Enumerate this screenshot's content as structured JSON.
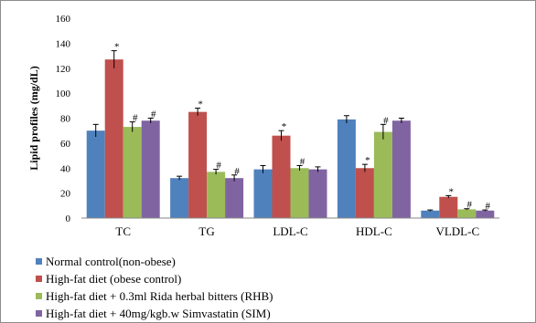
{
  "chart_data": {
    "type": "bar",
    "title": "",
    "xlabel": "",
    "ylabel": "Lipid profiles (mg/dL)",
    "ylim": [
      0,
      160
    ],
    "yticks": [
      "0",
      "20",
      "40",
      "60",
      "80",
      "100",
      "120",
      "140",
      "160"
    ],
    "categories": [
      "TC",
      "TG",
      "LDL-C",
      "HDL-C",
      "VLDL-C"
    ],
    "grid": false,
    "legend_position": "bottom",
    "series": [
      {
        "name": "Normal control(non-obese)",
        "color": "#4f81bd",
        "values": [
          70,
          32,
          39,
          79,
          6
        ],
        "errors": [
          5,
          1.5,
          3,
          3,
          0.5
        ],
        "markers": [
          "",
          "",
          "",
          "",
          ""
        ]
      },
      {
        "name": "High-fat diet (obese control)",
        "color": "#c0504d",
        "values": [
          127,
          85,
          66,
          40,
          17
        ],
        "errors": [
          7,
          3,
          4,
          3,
          1
        ],
        "markers": [
          "*",
          "*",
          "*",
          "*",
          "*"
        ]
      },
      {
        "name": "High-fat diet + 0.3ml Rida herbal bitters (RHB)",
        "color": "#9bbb59",
        "values": [
          73,
          37,
          40,
          69,
          7
        ],
        "errors": [
          4,
          2,
          2,
          6,
          0.5
        ],
        "markers": [
          "#",
          "#",
          "#",
          "#",
          "#"
        ]
      },
      {
        "name": "High-fat diet + 40mg/kgb.w Simvastatin (SIM)",
        "color": "#8064a2",
        "values": [
          78,
          32,
          39,
          78,
          6
        ],
        "errors": [
          2,
          2.5,
          2,
          2,
          0.5
        ],
        "markers": [
          "#",
          "#",
          "",
          "",
          "#"
        ]
      }
    ]
  }
}
